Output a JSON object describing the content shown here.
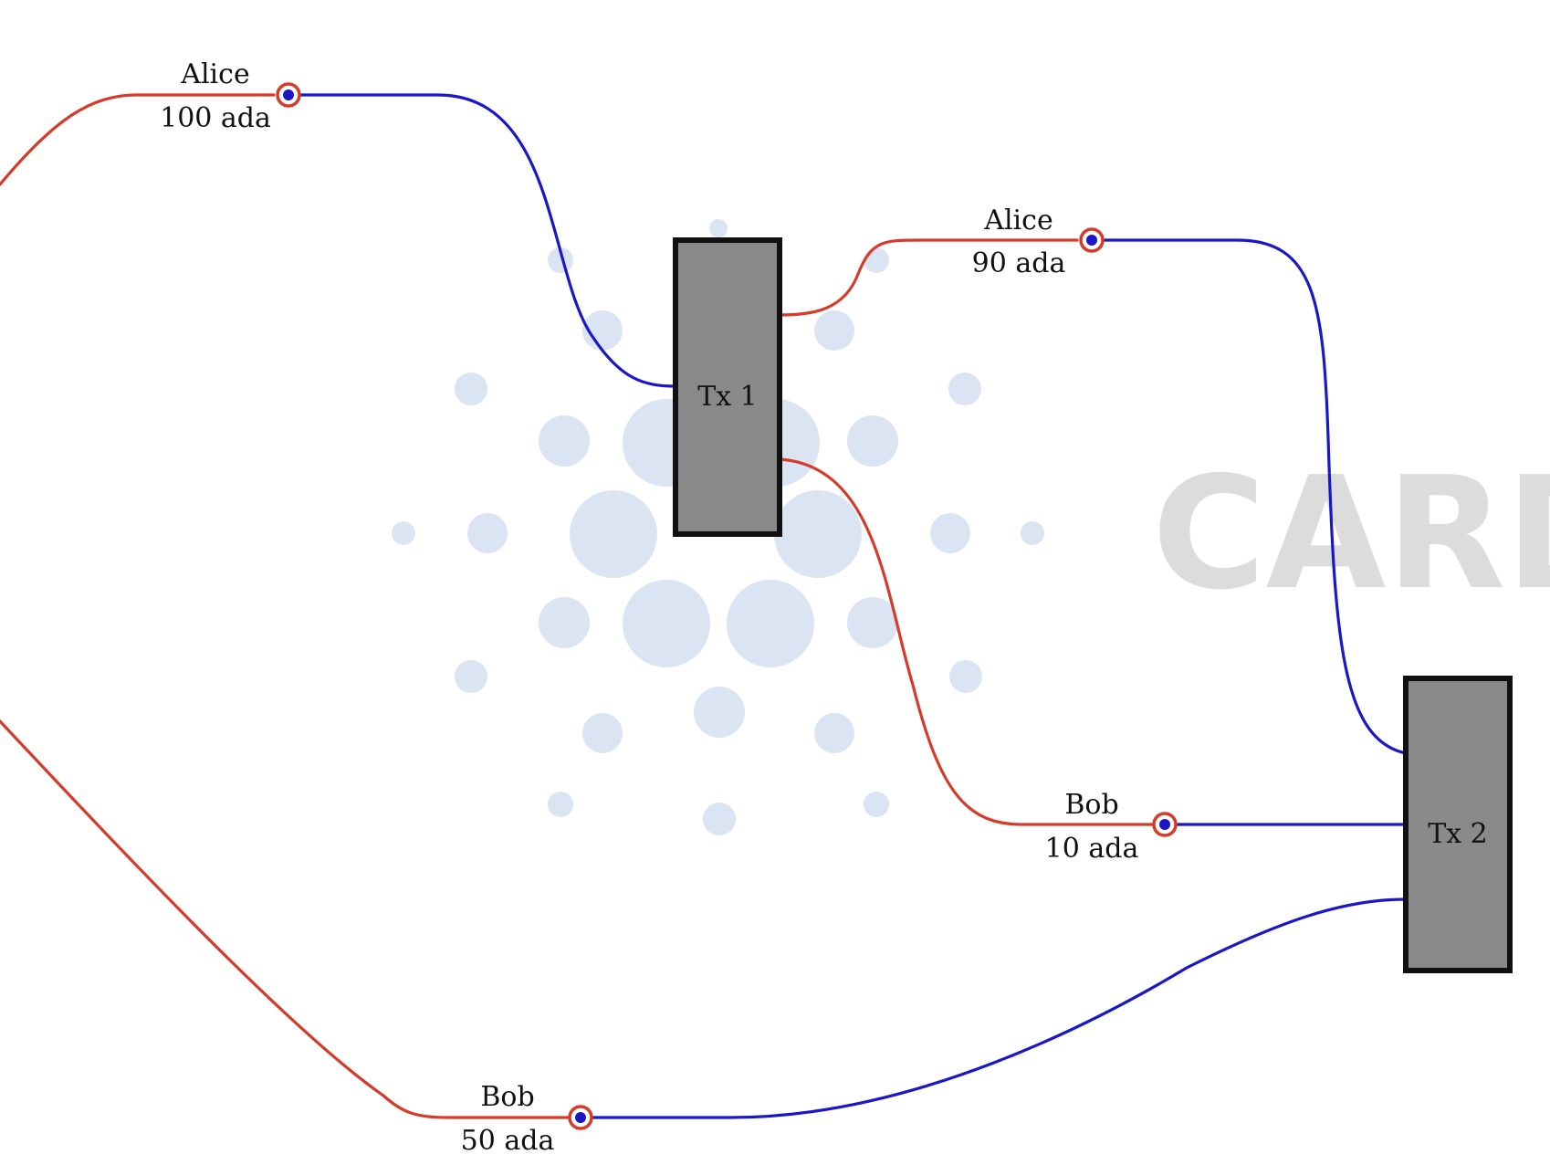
{
  "colors": {
    "output_wire": "#d63b2a",
    "input_wire": "#1a17c8",
    "tx_fill": "#8a8a8a",
    "tx_border": "#111111",
    "watermark_dots": "#dbe4f3",
    "watermark_text": "#dcdcdc"
  },
  "watermark": {
    "text": "CARD",
    "icon": "cardano-logo-icon"
  },
  "transactions": [
    {
      "id": "tx1",
      "label": "Tx 1"
    },
    {
      "id": "tx2",
      "label": "Tx 2"
    }
  ],
  "utxos": [
    {
      "id": "utxo-alice-100",
      "owner": "Alice",
      "amount": "100 ada"
    },
    {
      "id": "utxo-alice-90",
      "owner": "Alice",
      "amount": "90 ada"
    },
    {
      "id": "utxo-bob-10",
      "owner": "Bob",
      "amount": "10 ada"
    },
    {
      "id": "utxo-bob-50",
      "owner": "Bob",
      "amount": "50 ada"
    }
  ]
}
